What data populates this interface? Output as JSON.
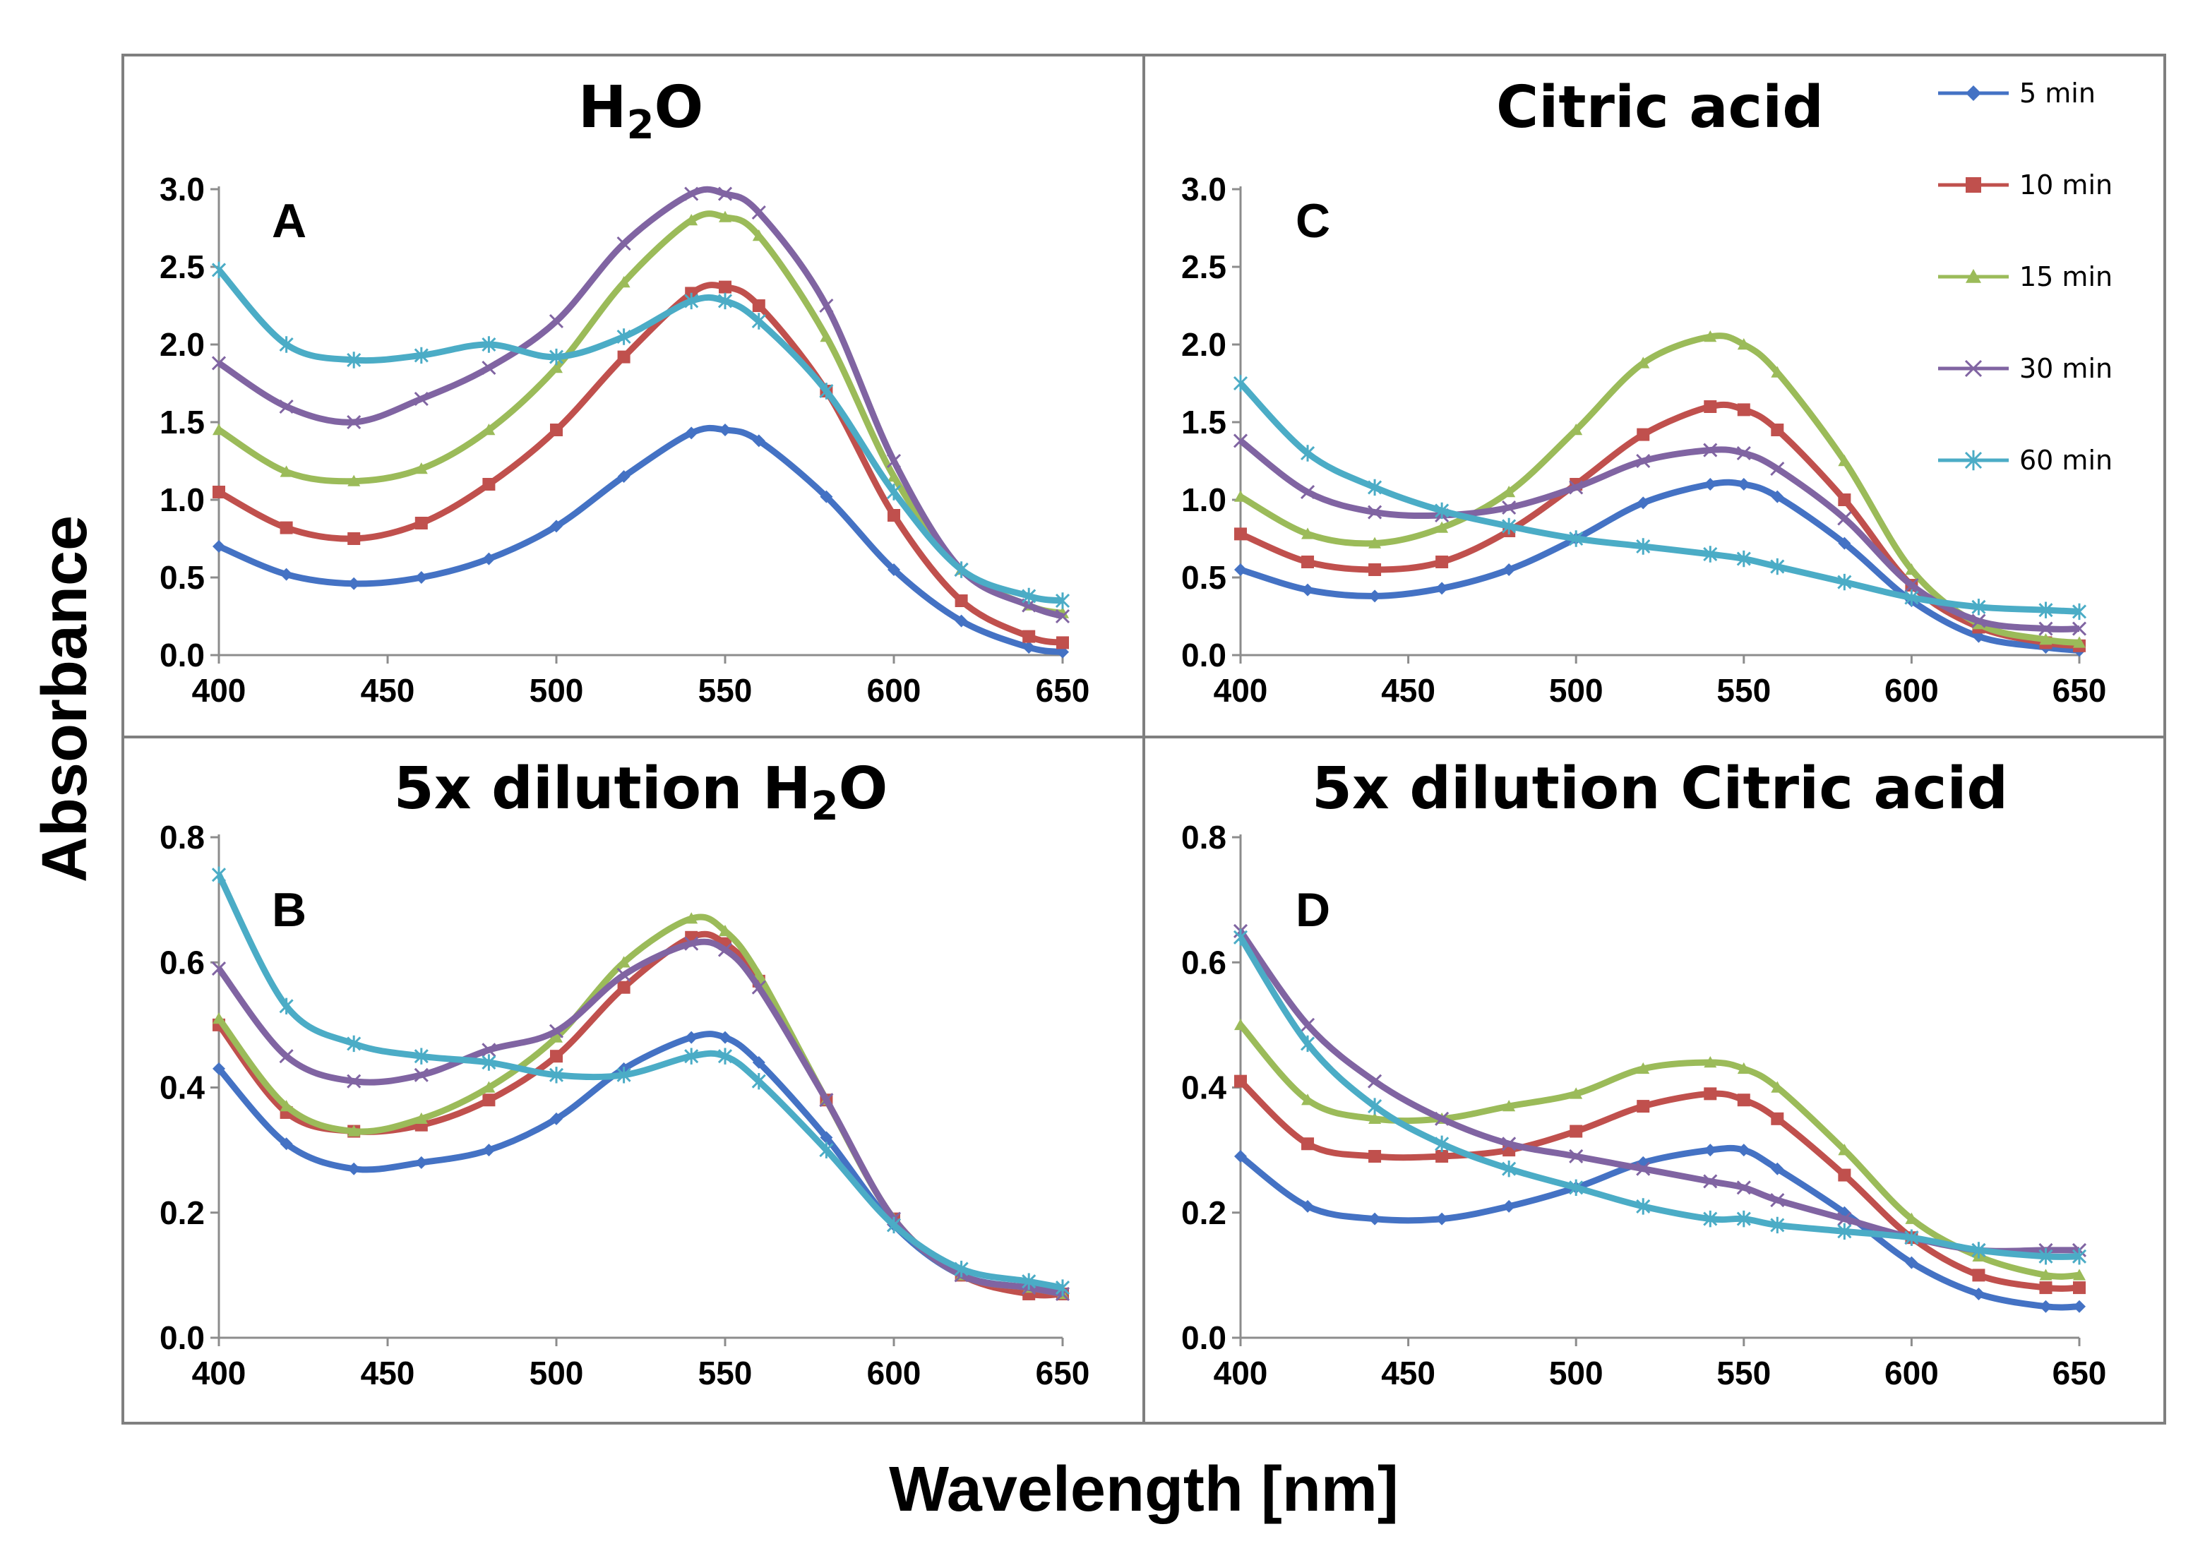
{
  "figure": {
    "ylabel": "Absorbance",
    "xlabel": "Wavelength [nm]"
  },
  "legend": [
    {
      "label": "5 min",
      "color": "#4472c4",
      "marker": "diamond"
    },
    {
      "label": "10 min",
      "color": "#c0504d",
      "marker": "square"
    },
    {
      "label": "15 min",
      "color": "#9bbb59",
      "marker": "triangle"
    },
    {
      "label": "30 min",
      "color": "#8064a2",
      "marker": "x"
    },
    {
      "label": "60 min",
      "color": "#4bacc6",
      "marker": "star"
    }
  ],
  "chart_data": [
    {
      "id": "A",
      "type": "line",
      "title_main": "H",
      "title_sub": "2",
      "title_tail": "O",
      "xlim": [
        400,
        650
      ],
      "ylim": [
        0,
        3.0
      ],
      "xticks": [
        "400",
        "450",
        "500",
        "550",
        "600",
        "650"
      ],
      "yticks": [
        "0.0",
        "0.5",
        "1.0",
        "1.5",
        "2.0",
        "2.5",
        "3.0"
      ],
      "series": [
        {
          "name": "5 min",
          "x": [
            400,
            420,
            440,
            460,
            480,
            500,
            520,
            540,
            550,
            560,
            580,
            600,
            620,
            640,
            650
          ],
          "values": [
            0.7,
            0.52,
            0.46,
            0.5,
            0.62,
            0.83,
            1.15,
            1.43,
            1.45,
            1.38,
            1.02,
            0.55,
            0.22,
            0.05,
            0.02
          ]
        },
        {
          "name": "10 min",
          "x": [
            400,
            420,
            440,
            460,
            480,
            500,
            520,
            540,
            550,
            560,
            580,
            600,
            620,
            640,
            650
          ],
          "values": [
            1.05,
            0.82,
            0.75,
            0.85,
            1.1,
            1.45,
            1.92,
            2.33,
            2.37,
            2.25,
            1.7,
            0.9,
            0.35,
            0.12,
            0.08
          ]
        },
        {
          "name": "15 min",
          "x": [
            400,
            420,
            440,
            460,
            480,
            500,
            520,
            540,
            550,
            560,
            580,
            600,
            620,
            640,
            650
          ],
          "values": [
            1.45,
            1.18,
            1.12,
            1.2,
            1.45,
            1.85,
            2.4,
            2.8,
            2.82,
            2.7,
            2.05,
            1.15,
            0.55,
            0.32,
            0.27
          ]
        },
        {
          "name": "30 min",
          "x": [
            400,
            420,
            440,
            460,
            480,
            500,
            520,
            540,
            550,
            560,
            580,
            600,
            620,
            640,
            650
          ],
          "values": [
            1.88,
            1.6,
            1.5,
            1.65,
            1.85,
            2.15,
            2.65,
            2.97,
            2.97,
            2.85,
            2.25,
            1.25,
            0.55,
            0.32,
            0.25
          ]
        },
        {
          "name": "60 min",
          "x": [
            400,
            420,
            440,
            460,
            480,
            500,
            520,
            540,
            550,
            560,
            580,
            600,
            620,
            640,
            650
          ],
          "values": [
            2.48,
            2.0,
            1.9,
            1.93,
            2.0,
            1.92,
            2.05,
            2.28,
            2.28,
            2.15,
            1.7,
            1.05,
            0.55,
            0.38,
            0.35
          ]
        }
      ]
    },
    {
      "id": "C",
      "type": "line",
      "title_main": "Citric acid",
      "title_sub": "",
      "title_tail": "",
      "xlim": [
        400,
        650
      ],
      "ylim": [
        0,
        3.0
      ],
      "xticks": [
        "400",
        "450",
        "500",
        "550",
        "600",
        "650"
      ],
      "yticks": [
        "0.0",
        "0.5",
        "1.0",
        "1.5",
        "2.0",
        "2.5",
        "3.0"
      ],
      "series": [
        {
          "name": "5 min",
          "x": [
            400,
            420,
            440,
            460,
            480,
            500,
            520,
            540,
            550,
            560,
            580,
            600,
            620,
            640,
            650
          ],
          "values": [
            0.55,
            0.42,
            0.38,
            0.43,
            0.55,
            0.75,
            0.98,
            1.1,
            1.1,
            1.02,
            0.72,
            0.35,
            0.12,
            0.05,
            0.03
          ]
        },
        {
          "name": "10 min",
          "x": [
            400,
            420,
            440,
            460,
            480,
            500,
            520,
            540,
            550,
            560,
            580,
            600,
            620,
            640,
            650
          ],
          "values": [
            0.78,
            0.6,
            0.55,
            0.6,
            0.8,
            1.1,
            1.42,
            1.6,
            1.58,
            1.45,
            1.0,
            0.45,
            0.18,
            0.08,
            0.06
          ]
        },
        {
          "name": "15 min",
          "x": [
            400,
            420,
            440,
            460,
            480,
            500,
            520,
            540,
            550,
            560,
            580,
            600,
            620,
            640,
            650
          ],
          "values": [
            1.02,
            0.78,
            0.72,
            0.82,
            1.05,
            1.45,
            1.88,
            2.05,
            2.0,
            1.82,
            1.25,
            0.55,
            0.2,
            0.1,
            0.08
          ]
        },
        {
          "name": "30 min",
          "x": [
            400,
            420,
            440,
            460,
            480,
            500,
            520,
            540,
            550,
            560,
            580,
            600,
            620,
            640,
            650
          ],
          "values": [
            1.38,
            1.05,
            0.92,
            0.9,
            0.95,
            1.08,
            1.25,
            1.32,
            1.3,
            1.2,
            0.88,
            0.45,
            0.22,
            0.17,
            0.17
          ]
        },
        {
          "name": "60 min",
          "x": [
            400,
            420,
            440,
            460,
            480,
            500,
            520,
            540,
            550,
            560,
            580,
            600,
            620,
            640,
            650
          ],
          "values": [
            1.75,
            1.3,
            1.08,
            0.93,
            0.83,
            0.75,
            0.7,
            0.65,
            0.62,
            0.57,
            0.47,
            0.37,
            0.31,
            0.29,
            0.28
          ]
        }
      ]
    },
    {
      "id": "B",
      "type": "line",
      "title_main": "5x dilution H",
      "title_sub": "2",
      "title_tail": "O",
      "xlim": [
        400,
        650
      ],
      "ylim": [
        0,
        0.8
      ],
      "xticks": [
        "400",
        "450",
        "500",
        "550",
        "600",
        "650"
      ],
      "yticks": [
        "0.0",
        "0.2",
        "0.4",
        "0.6",
        "0.8"
      ],
      "series": [
        {
          "name": "5 min",
          "x": [
            400,
            420,
            440,
            460,
            480,
            500,
            520,
            540,
            550,
            560,
            580,
            600,
            620,
            640,
            650
          ],
          "values": [
            0.43,
            0.31,
            0.27,
            0.28,
            0.3,
            0.35,
            0.43,
            0.48,
            0.48,
            0.44,
            0.32,
            0.18,
            0.1,
            0.08,
            0.07
          ]
        },
        {
          "name": "10 min",
          "x": [
            400,
            420,
            440,
            460,
            480,
            500,
            520,
            540,
            550,
            560,
            580,
            600,
            620,
            640,
            650
          ],
          "values": [
            0.5,
            0.36,
            0.33,
            0.34,
            0.38,
            0.45,
            0.56,
            0.64,
            0.63,
            0.57,
            0.38,
            0.19,
            0.1,
            0.07,
            0.07
          ]
        },
        {
          "name": "15 min",
          "x": [
            400,
            420,
            440,
            460,
            480,
            500,
            520,
            540,
            550,
            560,
            580,
            600,
            620,
            640,
            650
          ],
          "values": [
            0.51,
            0.37,
            0.33,
            0.35,
            0.4,
            0.48,
            0.6,
            0.67,
            0.65,
            0.58,
            0.38,
            0.19,
            0.1,
            0.08,
            0.07
          ]
        },
        {
          "name": "30 min",
          "x": [
            400,
            420,
            440,
            460,
            480,
            500,
            520,
            540,
            550,
            560,
            580,
            600,
            620,
            640,
            650
          ],
          "values": [
            0.59,
            0.45,
            0.41,
            0.42,
            0.46,
            0.49,
            0.58,
            0.63,
            0.62,
            0.56,
            0.38,
            0.19,
            0.1,
            0.08,
            0.07
          ]
        },
        {
          "name": "60 min",
          "x": [
            400,
            420,
            440,
            460,
            480,
            500,
            520,
            540,
            550,
            560,
            580,
            600,
            620,
            640,
            650
          ],
          "values": [
            0.74,
            0.53,
            0.47,
            0.45,
            0.44,
            0.42,
            0.42,
            0.45,
            0.45,
            0.41,
            0.3,
            0.18,
            0.11,
            0.09,
            0.08
          ]
        }
      ]
    },
    {
      "id": "D",
      "type": "line",
      "title_main": "5x dilution Citric acid",
      "title_sub": "",
      "title_tail": "",
      "xlim": [
        400,
        650
      ],
      "ylim": [
        0,
        0.8
      ],
      "xticks": [
        "400",
        "450",
        "500",
        "550",
        "600",
        "650"
      ],
      "yticks": [
        "0.0",
        "0.2",
        "0.4",
        "0.6",
        "0.8"
      ],
      "series": [
        {
          "name": "5 min",
          "x": [
            400,
            420,
            440,
            460,
            480,
            500,
            520,
            540,
            550,
            560,
            580,
            600,
            620,
            640,
            650
          ],
          "values": [
            0.29,
            0.21,
            0.19,
            0.19,
            0.21,
            0.24,
            0.28,
            0.3,
            0.3,
            0.27,
            0.2,
            0.12,
            0.07,
            0.05,
            0.05
          ]
        },
        {
          "name": "10 min",
          "x": [
            400,
            420,
            440,
            460,
            480,
            500,
            520,
            540,
            550,
            560,
            580,
            600,
            620,
            640,
            650
          ],
          "values": [
            0.41,
            0.31,
            0.29,
            0.29,
            0.3,
            0.33,
            0.37,
            0.39,
            0.38,
            0.35,
            0.26,
            0.16,
            0.1,
            0.08,
            0.08
          ]
        },
        {
          "name": "15 min",
          "x": [
            400,
            420,
            440,
            460,
            480,
            500,
            520,
            540,
            550,
            560,
            580,
            600,
            620,
            640,
            650
          ],
          "values": [
            0.5,
            0.38,
            0.35,
            0.35,
            0.37,
            0.39,
            0.43,
            0.44,
            0.43,
            0.4,
            0.3,
            0.19,
            0.13,
            0.1,
            0.1
          ]
        },
        {
          "name": "30 min",
          "x": [
            400,
            420,
            440,
            460,
            480,
            500,
            520,
            540,
            550,
            560,
            580,
            600,
            620,
            640,
            650
          ],
          "values": [
            0.65,
            0.5,
            0.41,
            0.35,
            0.31,
            0.29,
            0.27,
            0.25,
            0.24,
            0.22,
            0.19,
            0.16,
            0.14,
            0.14,
            0.14
          ]
        },
        {
          "name": "60 min",
          "x": [
            400,
            420,
            440,
            460,
            480,
            500,
            520,
            540,
            550,
            560,
            580,
            600,
            620,
            640,
            650
          ],
          "values": [
            0.64,
            0.47,
            0.37,
            0.31,
            0.27,
            0.24,
            0.21,
            0.19,
            0.19,
            0.18,
            0.17,
            0.16,
            0.14,
            0.13,
            0.13
          ]
        }
      ]
    }
  ]
}
